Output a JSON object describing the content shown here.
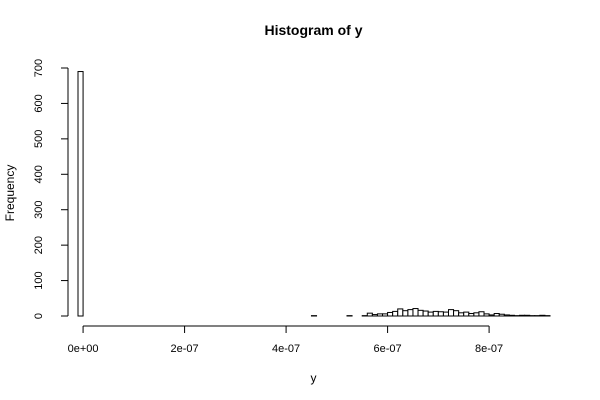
{
  "chart_data": {
    "type": "bar",
    "title": "Histogram of y",
    "xlabel": "y",
    "ylabel": "Frequency",
    "xlim": [
      -1e-08,
      9.2e-07
    ],
    "ylim": [
      0,
      700
    ],
    "x_ticks": [
      0,
      2e-07,
      4e-07,
      6e-07,
      8e-07
    ],
    "x_tick_labels": [
      "0e+00",
      "2e-07",
      "4e-07",
      "6e-07",
      "8e-07"
    ],
    "y_ticks": [
      0,
      100,
      200,
      300,
      400,
      500,
      600,
      700
    ],
    "y_tick_labels": [
      "0",
      "100",
      "200",
      "300",
      "400",
      "500",
      "600",
      "700"
    ],
    "bin_width": 1e-08,
    "bins": [
      {
        "x0": -1e-08,
        "x1": 0,
        "count": 690
      },
      {
        "x0": 4.5e-07,
        "x1": 4.6e-07,
        "count": 1
      },
      {
        "x0": 5.2e-07,
        "x1": 5.3e-07,
        "count": 1
      },
      {
        "x0": 5.5e-07,
        "x1": 5.6e-07,
        "count": 1
      },
      {
        "x0": 5.6e-07,
        "x1": 5.7e-07,
        "count": 8
      },
      {
        "x0": 5.7e-07,
        "x1": 5.8e-07,
        "count": 4
      },
      {
        "x0": 5.8e-07,
        "x1": 5.9e-07,
        "count": 6
      },
      {
        "x0": 5.9e-07,
        "x1": 6e-07,
        "count": 6
      },
      {
        "x0": 6e-07,
        "x1": 6.1e-07,
        "count": 10
      },
      {
        "x0": 6.1e-07,
        "x1": 6.2e-07,
        "count": 13
      },
      {
        "x0": 6.2e-07,
        "x1": 6.3e-07,
        "count": 20
      },
      {
        "x0": 6.3e-07,
        "x1": 6.4e-07,
        "count": 15
      },
      {
        "x0": 6.4e-07,
        "x1": 6.5e-07,
        "count": 18
      },
      {
        "x0": 6.5e-07,
        "x1": 6.6e-07,
        "count": 21
      },
      {
        "x0": 6.6e-07,
        "x1": 6.7e-07,
        "count": 16
      },
      {
        "x0": 6.7e-07,
        "x1": 6.8e-07,
        "count": 14
      },
      {
        "x0": 6.8e-07,
        "x1": 6.9e-07,
        "count": 11
      },
      {
        "x0": 6.9e-07,
        "x1": 7e-07,
        "count": 13
      },
      {
        "x0": 7e-07,
        "x1": 7.1e-07,
        "count": 12
      },
      {
        "x0": 7.1e-07,
        "x1": 7.2e-07,
        "count": 11
      },
      {
        "x0": 7.2e-07,
        "x1": 7.3e-07,
        "count": 18
      },
      {
        "x0": 7.3e-07,
        "x1": 7.4e-07,
        "count": 15
      },
      {
        "x0": 7.4e-07,
        "x1": 7.5e-07,
        "count": 9
      },
      {
        "x0": 7.5e-07,
        "x1": 7.6e-07,
        "count": 11
      },
      {
        "x0": 7.6e-07,
        "x1": 7.7e-07,
        "count": 7
      },
      {
        "x0": 7.7e-07,
        "x1": 7.8e-07,
        "count": 9
      },
      {
        "x0": 7.8e-07,
        "x1": 7.9e-07,
        "count": 12
      },
      {
        "x0": 7.9e-07,
        "x1": 8e-07,
        "count": 6
      },
      {
        "x0": 8e-07,
        "x1": 8.1e-07,
        "count": 3
      },
      {
        "x0": 8.1e-07,
        "x1": 8.2e-07,
        "count": 7
      },
      {
        "x0": 8.2e-07,
        "x1": 8.3e-07,
        "count": 5
      },
      {
        "x0": 8.3e-07,
        "x1": 8.4e-07,
        "count": 3
      },
      {
        "x0": 8.4e-07,
        "x1": 8.5e-07,
        "count": 2
      },
      {
        "x0": 8.5e-07,
        "x1": 8.6e-07,
        "count": 1
      },
      {
        "x0": 8.6e-07,
        "x1": 8.7e-07,
        "count": 2
      },
      {
        "x0": 8.7e-07,
        "x1": 8.8e-07,
        "count": 2
      },
      {
        "x0": 8.8e-07,
        "x1": 8.9e-07,
        "count": 1
      },
      {
        "x0": 8.9e-07,
        "x1": 9e-07,
        "count": 1
      },
      {
        "x0": 9e-07,
        "x1": 9.1e-07,
        "count": 2
      },
      {
        "x0": 9.1e-07,
        "x1": 9.2e-07,
        "count": 1
      }
    ],
    "grid": false,
    "legend": "none",
    "bar_fill": "#ffffff",
    "bar_stroke": "#000000"
  }
}
